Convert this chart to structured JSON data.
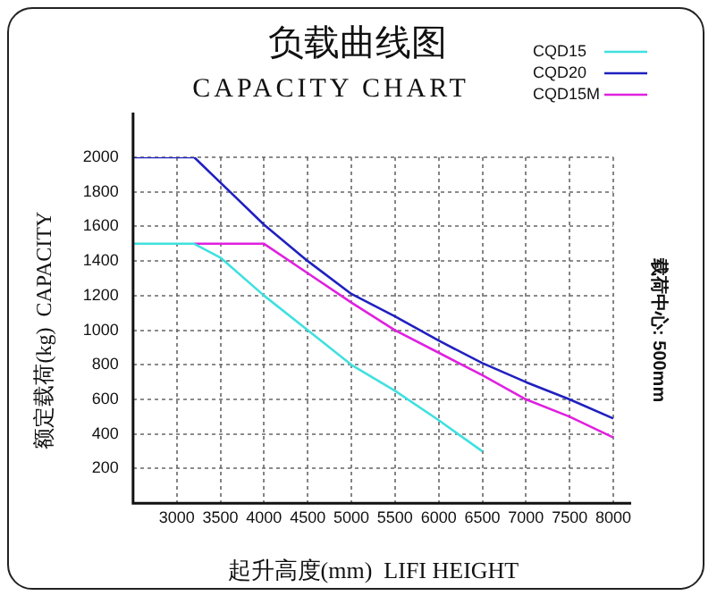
{
  "chart_data": {
    "type": "line",
    "title": "负载曲线图",
    "subtitle": "CAPACITY CHART",
    "xlabel": "起升高度(mm)  LIFI HEIGHT",
    "ylabel": "额定载荷(kg)  CAPACITY",
    "annotations": [
      "载荷中心: 500mm"
    ],
    "xlim": [
      2500,
      8000
    ],
    "xticks": [
      3000,
      3500,
      4000,
      4500,
      5000,
      5500,
      6000,
      6500,
      7000,
      7500,
      8000
    ],
    "ylim": [
      0,
      2000
    ],
    "yticks": [
      200,
      400,
      600,
      800,
      1000,
      1200,
      1400,
      1600,
      1800,
      2000
    ],
    "grid": true,
    "legend": "top right",
    "marker": "none",
    "line_style": "solid",
    "series": [
      {
        "name": "CQD15",
        "color": "#40e0e0",
        "x": [
          2500,
          3200,
          3500,
          4000,
          4500,
          5000,
          5500,
          6000,
          6500
        ],
        "values": [
          1500,
          1500,
          1420,
          1200,
          1000,
          800,
          650,
          480,
          300
        ]
      },
      {
        "name": "CQD20",
        "color": "#2020c0",
        "x": [
          2500,
          3200,
          4000,
          4500,
          5000,
          5500,
          6000,
          6500,
          7000,
          7500,
          8000
        ],
        "values": [
          2000,
          2000,
          1610,
          1400,
          1210,
          1080,
          940,
          810,
          700,
          600,
          490
        ]
      },
      {
        "name": "CQD15M",
        "color": "#e020e0",
        "x": [
          3200,
          4000,
          4500,
          5000,
          5500,
          6000,
          6500,
          7000,
          7500,
          8000
        ],
        "values": [
          1500,
          1500,
          1330,
          1160,
          1000,
          870,
          740,
          600,
          500,
          380
        ]
      }
    ]
  }
}
